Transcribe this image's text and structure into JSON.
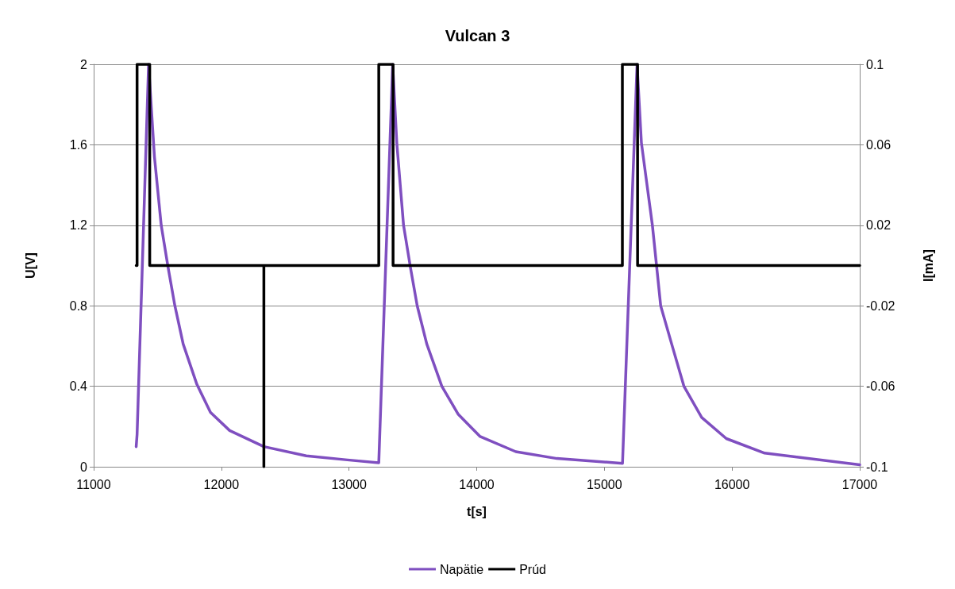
{
  "chart_data": {
    "type": "line",
    "title": "Vulcan 3",
    "xlabel": "t[s]",
    "ylabel": "U[V]",
    "y2label": "I[mA]",
    "xlim": [
      11000,
      17000
    ],
    "xticks": [
      11000,
      12000,
      13000,
      14000,
      15000,
      16000,
      17000
    ],
    "ylim": [
      0,
      2
    ],
    "yticks": [
      0,
      0.4,
      0.8,
      1.2,
      1.6,
      2
    ],
    "y2lim": [
      -0.1,
      0.1
    ],
    "y2ticks": [
      -0.1,
      -0.06,
      -0.02,
      0.02,
      0.06,
      0.1
    ],
    "grid": "y",
    "legend": "bottom",
    "marker": "none",
    "line_style": "solid",
    "series": [
      {
        "name": "Napätie",
        "color": "#7f4fc0",
        "x": [
          11333,
          11340,
          11430,
          11476,
          11529,
          11583,
          11636,
          11701,
          11808,
          11915,
          12065,
          12333,
          12665,
          12987,
          13233,
          13342,
          13374,
          13427,
          13481,
          13534,
          13609,
          13727,
          13856,
          14027,
          14306,
          14628,
          15142,
          15256,
          15290,
          15376,
          15441,
          15527,
          15623,
          15762,
          15955,
          16255,
          17000
        ],
        "values": [
          0.1,
          0.16,
          2,
          1.54,
          1.2,
          0.99,
          0.8,
          0.61,
          0.41,
          0.27,
          0.18,
          0.1,
          0.054,
          0.034,
          0.02,
          2,
          1.61,
          1.2,
          0.99,
          0.8,
          0.61,
          0.4,
          0.26,
          0.15,
          0.075,
          0.041,
          0.017,
          2,
          1.61,
          1.2,
          0.8,
          0.61,
          0.4,
          0.245,
          0.14,
          0.068,
          0.01
        ]
      },
      {
        "name": "Prúd",
        "color": "#000000",
        "axis": "y2",
        "x": [
          11333,
          11340,
          11340,
          11439,
          11439,
          12333,
          12333,
          12333,
          13233,
          13233,
          13345,
          13345,
          15141,
          15141,
          15260,
          15260,
          17000
        ],
        "values": [
          0,
          0,
          0.1,
          0.1,
          0,
          0,
          -0.1,
          0,
          0,
          0.1,
          0.1,
          0,
          0,
          0.1,
          0.1,
          0,
          0
        ]
      }
    ]
  }
}
